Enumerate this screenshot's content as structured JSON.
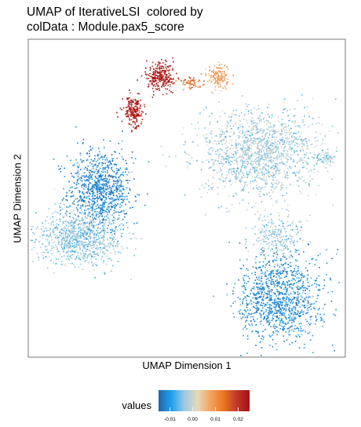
{
  "title_line1": "UMAP of IterativeLSI  colored by",
  "title_line2": "colData : Module.pax5_score",
  "chart_data": {
    "type": "scatter",
    "title": "UMAP of IterativeLSI  colored by colData : Module.pax5_score",
    "xlabel": "UMAP Dimension 1",
    "ylabel": "UMAP Dimension 2",
    "axes_ticks_shown": false,
    "grid": false,
    "legend": {
      "title": "values",
      "placement": "bottom",
      "ticks": [
        "-0.01",
        "0.00",
        "0.01",
        "0.02"
      ],
      "colormap": [
        "#2166ac",
        "#1fa0f0",
        "#9ecae1",
        "#e6d9b8",
        "#f4a261",
        "#e8771e",
        "#c0392b",
        "#a50f15"
      ]
    },
    "value_range": [
      -0.015,
      0.025
    ],
    "clusters": [
      {
        "id": "left-lobe-upper",
        "cx": -8.5,
        "cy": 1.5,
        "sx": 1.2,
        "sy": 1.4,
        "n": 900,
        "value": -0.012
      },
      {
        "id": "left-lobe-lower",
        "cx": -9.8,
        "cy": -1.2,
        "sx": 1.6,
        "sy": 0.9,
        "n": 900,
        "value": -0.004
      },
      {
        "id": "top-center-red",
        "cx": -4.7,
        "cy": 7.9,
        "sx": 0.5,
        "sy": 0.45,
        "n": 260,
        "value": 0.024
      },
      {
        "id": "upper-left-red",
        "cx": -6.4,
        "cy": 6.0,
        "sx": 0.35,
        "sy": 0.45,
        "n": 200,
        "value": 0.023
      },
      {
        "id": "top-tan",
        "cx": -1.0,
        "cy": 7.9,
        "sx": 0.4,
        "sy": 0.4,
        "n": 150,
        "value": 0.008
      },
      {
        "id": "bridge-orange",
        "cx": -2.7,
        "cy": 7.6,
        "sx": 0.45,
        "sy": 0.18,
        "n": 60,
        "value": 0.014
      },
      {
        "id": "right-upper-blob",
        "cx": 1.6,
        "cy": 3.6,
        "sx": 2.3,
        "sy": 1.4,
        "n": 1400,
        "value": -0.003
      },
      {
        "id": "right-lower-blob",
        "cx": 2.8,
        "cy": -4.6,
        "sx": 1.5,
        "sy": 1.5,
        "n": 1100,
        "value": -0.011
      },
      {
        "id": "right-stem",
        "cx": 2.6,
        "cy": -1.2,
        "sx": 0.9,
        "sy": 0.8,
        "n": 250,
        "value": -0.003
      },
      {
        "id": "right-spur",
        "cx": 5.8,
        "cy": 3.3,
        "sx": 0.4,
        "sy": 0.2,
        "n": 60,
        "value": -0.004
      }
    ],
    "xlim": [
      -13,
      7
    ],
    "ylim": [
      -8,
      10
    ]
  }
}
